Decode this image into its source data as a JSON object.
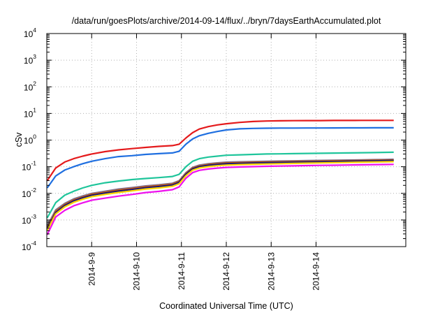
{
  "chart_data": {
    "type": "line",
    "title": "/data/run/goesPlots/archive/2014-09-14/flux/../bryn/7daysEarthAccumulated.plot",
    "xlabel": "Coordinated Universal Time (UTC)",
    "ylabel": "cSv",
    "yscale": "log",
    "ylim": [
      0.0001,
      10000
    ],
    "xlim": [
      -1.0,
      7.0
    ],
    "grid": true,
    "legend": "none",
    "y_ticks": [
      {
        "base": "10",
        "exp": "-4"
      },
      {
        "base": "10",
        "exp": "-3"
      },
      {
        "base": "10",
        "exp": "-2"
      },
      {
        "base": "10",
        "exp": "-1"
      },
      {
        "base": "10",
        "exp": "0"
      },
      {
        "base": "10",
        "exp": "1"
      },
      {
        "base": "10",
        "exp": "2"
      },
      {
        "base": "10",
        "exp": "3"
      },
      {
        "base": "10",
        "exp": "4"
      }
    ],
    "x_ticks": [
      {
        "label": "2014-9-9",
        "x": 0
      },
      {
        "label": "2014-9-10",
        "x": 1
      },
      {
        "label": "2014-9-11",
        "x": 2
      },
      {
        "label": "2014-9-12",
        "x": 3
      },
      {
        "label": "2014-9-13",
        "x": 4
      },
      {
        "label": "2014-9-14",
        "x": 5
      }
    ],
    "x": [
      -0.99,
      -0.8,
      -0.6,
      -0.4,
      -0.2,
      0.0,
      0.3,
      0.6,
      0.9,
      1.2,
      1.5,
      1.8,
      1.95,
      2.1,
      2.25,
      2.4,
      2.6,
      2.8,
      3.0,
      3.3,
      3.6,
      3.9,
      4.2,
      4.5,
      4.8,
      5.1,
      5.4,
      5.7,
      6.0,
      6.3,
      6.5,
      6.73
    ],
    "series": [
      {
        "color": "#e41a1c",
        "values": [
          0.03,
          0.09,
          0.15,
          0.2,
          0.25,
          0.3,
          0.37,
          0.43,
          0.48,
          0.53,
          0.58,
          0.62,
          0.7,
          1.2,
          1.9,
          2.6,
          3.2,
          3.7,
          4.1,
          4.6,
          5.0,
          5.2,
          5.3,
          5.35,
          5.4,
          5.4,
          5.45,
          5.45,
          5.5,
          5.5,
          5.5,
          5.5
        ]
      },
      {
        "color": "#1f6fe0",
        "values": [
          0.016,
          0.045,
          0.075,
          0.1,
          0.13,
          0.16,
          0.2,
          0.24,
          0.26,
          0.29,
          0.31,
          0.33,
          0.38,
          0.7,
          1.1,
          1.45,
          1.8,
          2.1,
          2.4,
          2.65,
          2.75,
          2.8,
          2.82,
          2.83,
          2.84,
          2.85,
          2.86,
          2.87,
          2.88,
          2.89,
          2.9,
          2.9
        ]
      },
      {
        "color": "#1fc59b",
        "values": [
          0.0012,
          0.0045,
          0.0085,
          0.012,
          0.016,
          0.02,
          0.025,
          0.029,
          0.033,
          0.036,
          0.039,
          0.043,
          0.052,
          0.1,
          0.16,
          0.2,
          0.23,
          0.25,
          0.27,
          0.28,
          0.29,
          0.3,
          0.305,
          0.31,
          0.315,
          0.32,
          0.325,
          0.33,
          0.335,
          0.34,
          0.345,
          0.35
        ]
      },
      {
        "color": "#7f6f8f",
        "values": [
          0.0006,
          0.0024,
          0.0042,
          0.0062,
          0.008,
          0.01,
          0.012,
          0.0145,
          0.0165,
          0.019,
          0.021,
          0.024,
          0.03,
          0.06,
          0.095,
          0.115,
          0.13,
          0.14,
          0.148,
          0.153,
          0.157,
          0.16,
          0.163,
          0.166,
          0.169,
          0.172,
          0.175,
          0.178,
          0.181,
          0.184,
          0.187,
          0.19
        ]
      },
      {
        "color": "#cc5500",
        "values": [
          0.0005,
          0.0021,
          0.0038,
          0.0056,
          0.0073,
          0.0092,
          0.011,
          0.0132,
          0.015,
          0.0175,
          0.0195,
          0.022,
          0.028,
          0.055,
          0.088,
          0.106,
          0.12,
          0.13,
          0.137,
          0.142,
          0.146,
          0.149,
          0.152,
          0.155,
          0.158,
          0.161,
          0.164,
          0.167,
          0.17,
          0.173,
          0.176,
          0.178
        ]
      },
      {
        "color": "#1a1a7a",
        "values": [
          0.00045,
          0.0019,
          0.0035,
          0.0052,
          0.0068,
          0.0085,
          0.0103,
          0.0122,
          0.014,
          0.0163,
          0.018,
          0.0205,
          0.026,
          0.052,
          0.083,
          0.1,
          0.113,
          0.122,
          0.129,
          0.134,
          0.138,
          0.141,
          0.144,
          0.147,
          0.15,
          0.153,
          0.156,
          0.159,
          0.162,
          0.165,
          0.168,
          0.17
        ]
      },
      {
        "color": "#ffd400",
        "values": [
          0.0004,
          0.0017,
          0.0031,
          0.0046,
          0.006,
          0.0075,
          0.0091,
          0.0108,
          0.0124,
          0.0145,
          0.016,
          0.0183,
          0.023,
          0.046,
          0.074,
          0.09,
          0.101,
          0.109,
          0.115,
          0.12,
          0.124,
          0.127,
          0.13,
          0.133,
          0.136,
          0.139,
          0.142,
          0.145,
          0.148,
          0.151,
          0.153,
          0.155
        ]
      },
      {
        "color": "#ee11ee",
        "values": [
          0.00028,
          0.0013,
          0.0023,
          0.0034,
          0.0044,
          0.0055,
          0.0066,
          0.0079,
          0.0091,
          0.0107,
          0.0119,
          0.0137,
          0.0175,
          0.037,
          0.06,
          0.073,
          0.082,
          0.089,
          0.094,
          0.098,
          0.101,
          0.104,
          0.106,
          0.108,
          0.11,
          0.112,
          0.114,
          0.116,
          0.118,
          0.12,
          0.121,
          0.122
        ]
      }
    ]
  }
}
